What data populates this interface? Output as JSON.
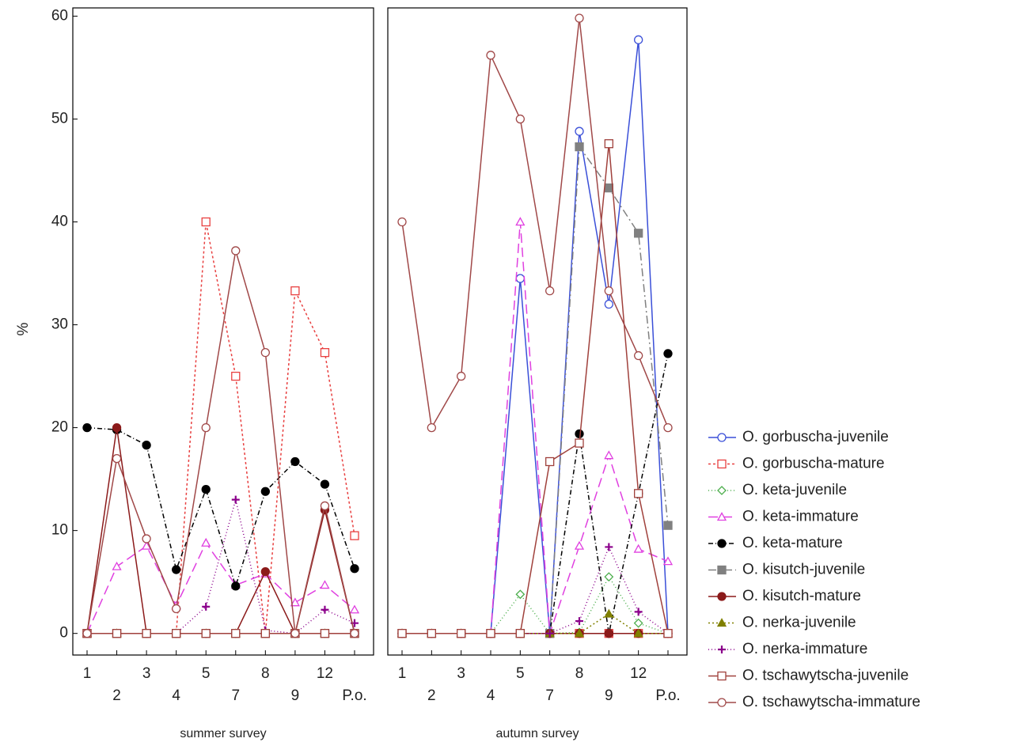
{
  "chart_data": [
    {
      "type": "line",
      "xlabel": "summer survey",
      "ylabel": "%",
      "legend": "right",
      "categories": [
        "1",
        "2",
        "3",
        "4",
        "5",
        "7",
        "8",
        "9",
        "12",
        "P.o."
      ],
      "ylim": [
        -2.1,
        60.8
      ],
      "yticks": [
        0,
        10,
        20,
        30,
        40,
        50,
        60
      ],
      "series": [
        {
          "name": "O. gorbuscha-juvenile",
          "color": "#3a4fd8",
          "marker": "circle-open",
          "dash": "none",
          "values": [
            0,
            0,
            0,
            0,
            0,
            0,
            0,
            0,
            0,
            0
          ]
        },
        {
          "name": "O. gorbuscha-mature",
          "color": "#e84040",
          "marker": "square-open",
          "dash": "3,3",
          "values": [
            0,
            0,
            0,
            0,
            40,
            25,
            0,
            33.3,
            27.3,
            9.5
          ]
        },
        {
          "name": "O. keta-juvenile",
          "color": "#4cae4c",
          "marker": "diamond-open",
          "dash": "1,3",
          "values": [
            0,
            0,
            0,
            0,
            0,
            0,
            0,
            0,
            0,
            0
          ]
        },
        {
          "name": "O. keta-immature",
          "color": "#e040e0",
          "marker": "triangle-open",
          "dash": "12,6",
          "values": [
            0,
            6.5,
            8.5,
            2.7,
            8.8,
            4.7,
            5.8,
            3,
            4.7,
            2.3
          ]
        },
        {
          "name": "O. keta-mature",
          "color": "#000000",
          "marker": "circle-filled",
          "dash": "6,3,1,3",
          "values": [
            20,
            19.8,
            18.3,
            6.2,
            14,
            4.6,
            13.8,
            16.7,
            14.5,
            6.3
          ]
        },
        {
          "name": "O. kisutch-juvenile",
          "color": "#808080",
          "marker": "square-filled",
          "dash": "10,4,2,4",
          "values": [
            0,
            0,
            0,
            0,
            0,
            0,
            0,
            0,
            0,
            0
          ]
        },
        {
          "name": "O. kisutch-mature",
          "color": "#8b1a1a",
          "marker": "circle-filled",
          "dash": "none",
          "values": [
            0,
            20,
            0,
            0,
            0,
            0,
            6,
            0,
            12,
            0
          ]
        },
        {
          "name": "O. nerka-juvenile",
          "color": "#808000",
          "marker": "triangle-filled",
          "dash": "2,3",
          "values": [
            0,
            0,
            0,
            0,
            0,
            0,
            0,
            0,
            0,
            0
          ]
        },
        {
          "name": "O. nerka-immature",
          "color": "#8b008b",
          "marker": "plus",
          "dash": "1,3",
          "values": [
            0,
            0,
            0,
            0,
            2.6,
            13,
            0.3,
            0,
            2.3,
            1
          ]
        },
        {
          "name": "O. tschawytscha-juvenile",
          "color": "#a0413c",
          "marker": "square-open",
          "dash": "none",
          "values": [
            0,
            0,
            0,
            0,
            0,
            0,
            0,
            0,
            0,
            0
          ]
        },
        {
          "name": "O. tschawytscha-immature",
          "color": "#a04848",
          "marker": "circle-open",
          "dash": "none",
          "values": [
            0,
            17,
            9.2,
            2.4,
            20,
            37.2,
            27.3,
            0,
            12.4,
            0
          ]
        }
      ]
    },
    {
      "type": "line",
      "xlabel": "autumn survey",
      "categories": [
        "1",
        "2",
        "3",
        "4",
        "5",
        "7",
        "8",
        "9",
        "12",
        "P.o."
      ],
      "ylim": [
        -2.1,
        60.8
      ],
      "series": [
        {
          "color": "#3a4fd8",
          "marker": "circle-open",
          "dash": "none",
          "values": [
            0,
            0,
            0,
            0,
            34.5,
            0,
            48.8,
            32,
            57.7,
            0
          ]
        },
        {
          "color": "#e84040",
          "marker": "square-open",
          "dash": "3,3",
          "values": [
            0,
            0,
            0,
            0,
            0,
            0,
            0,
            0,
            0,
            0
          ]
        },
        {
          "color": "#4cae4c",
          "marker": "diamond-open",
          "dash": "1,3",
          "values": [
            0,
            0,
            0,
            0,
            3.8,
            0,
            0.1,
            5.5,
            1,
            0
          ]
        },
        {
          "color": "#e040e0",
          "marker": "triangle-open",
          "dash": "12,6",
          "values": [
            0,
            0,
            0,
            0,
            40,
            0,
            8.5,
            17.3,
            8.2,
            7
          ]
        },
        {
          "color": "#000000",
          "marker": "circle-filled",
          "dash": "6,3,1,3",
          "values": [
            0,
            0,
            0,
            0,
            0,
            0,
            19.4,
            0,
            13.6,
            27.2
          ]
        },
        {
          "color": "#808080",
          "marker": "square-filled",
          "dash": "10,4,2,4",
          "values": [
            0,
            0,
            0,
            0,
            0,
            0,
            47.3,
            43.3,
            38.9,
            10.5
          ]
        },
        {
          "color": "#8b1a1a",
          "marker": "circle-filled",
          "dash": "none",
          "values": [
            0,
            0,
            0,
            0,
            0,
            0,
            0,
            0,
            0,
            0
          ]
        },
        {
          "color": "#808000",
          "marker": "triangle-filled",
          "dash": "2,3",
          "values": [
            0,
            0,
            0,
            0,
            0,
            0,
            0,
            1.9,
            0,
            0
          ]
        },
        {
          "color": "#8b008b",
          "marker": "plus",
          "dash": "1,3",
          "values": [
            0,
            0,
            0,
            0,
            0,
            0,
            1.2,
            8.4,
            2.1,
            0
          ]
        },
        {
          "color": "#a0413c",
          "marker": "square-open",
          "dash": "none",
          "values": [
            0,
            0,
            0,
            0,
            0,
            16.7,
            18.5,
            47.6,
            13.6,
            0
          ]
        },
        {
          "color": "#a04848",
          "marker": "circle-open",
          "dash": "none",
          "values": [
            40,
            20,
            25,
            56.2,
            50,
            33.3,
            59.8,
            33.3,
            27,
            20
          ]
        }
      ]
    }
  ]
}
